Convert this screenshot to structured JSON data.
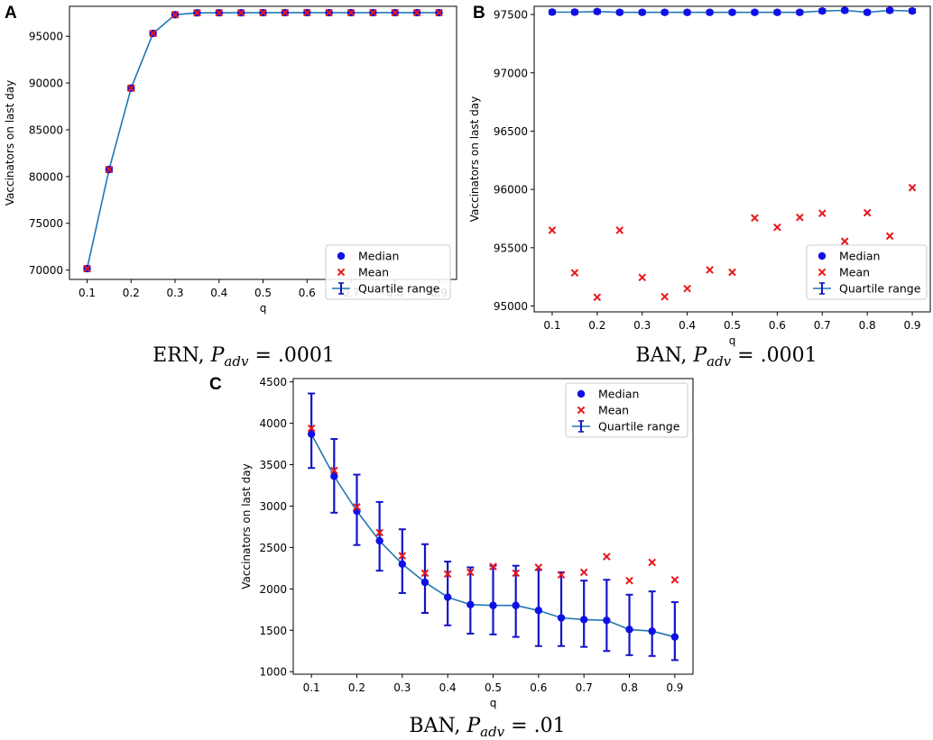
{
  "colors": {
    "median": "#1010e6",
    "mean": "#e8161b",
    "line": "#1f77b4",
    "errorbar": "#1414c8"
  },
  "chart_data": [
    {
      "panel": "A",
      "type": "line",
      "caption": {
        "name": "ERN",
        "p_symbol": "P",
        "p_sub": "adv",
        "value": ".0001"
      },
      "xlabel": "q",
      "ylabel": "Vaccinators on last day",
      "xlim": [
        0.06,
        0.94
      ],
      "ylim": [
        69000,
        98200
      ],
      "xticks": [
        "0.1",
        "0.2",
        "0.3",
        "0.4",
        "0.5",
        "0.6",
        "0.7",
        "0.8",
        "0.9"
      ],
      "yticks": [
        "70000",
        "75000",
        "80000",
        "85000",
        "90000",
        "95000"
      ],
      "legend": {
        "placement": "lower-right",
        "entries": [
          "Median",
          "Mean",
          "Quartile range"
        ]
      },
      "x": [
        0.1,
        0.15,
        0.2,
        0.25,
        0.3,
        0.35,
        0.4,
        0.45,
        0.5,
        0.55,
        0.6,
        0.65,
        0.7,
        0.75,
        0.8,
        0.85,
        0.9
      ],
      "series": [
        {
          "name": "Median",
          "values": [
            70150,
            80750,
            89450,
            95300,
            97300,
            97500,
            97510,
            97510,
            97520,
            97520,
            97520,
            97520,
            97520,
            97520,
            97520,
            97520,
            97520
          ]
        },
        {
          "name": "Mean",
          "values": [
            70150,
            80750,
            89450,
            95300,
            97300,
            97500,
            97510,
            97510,
            97520,
            97520,
            97520,
            97520,
            97520,
            97520,
            97520,
            97520,
            97520
          ]
        },
        {
          "name": "Quartile range",
          "lower": [
            69900,
            80500,
            89250,
            95100,
            97200,
            97450,
            97470,
            97470,
            97480,
            97480,
            97480,
            97480,
            97480,
            97480,
            97480,
            97480,
            97480
          ],
          "upper": [
            70400,
            81000,
            89650,
            95500,
            97400,
            97560,
            97560,
            97560,
            97560,
            97560,
            97560,
            97560,
            97560,
            97560,
            97560,
            97560,
            97560
          ]
        }
      ]
    },
    {
      "panel": "B",
      "type": "line",
      "caption": {
        "name": "BAN",
        "p_symbol": "P",
        "p_sub": "adv",
        "value": ".0001"
      },
      "xlabel": "q",
      "ylabel": "Vaccinators on last day",
      "xlim": [
        0.06,
        0.94
      ],
      "ylim": [
        94950,
        97570
      ],
      "xticks": [
        "0.1",
        "0.2",
        "0.3",
        "0.4",
        "0.5",
        "0.6",
        "0.7",
        "0.8",
        "0.9"
      ],
      "yticks": [
        "95000",
        "95500",
        "96000",
        "96500",
        "97000",
        "97500"
      ],
      "legend": {
        "placement": "lower-right",
        "entries": [
          "Median",
          "Mean",
          "Quartile range"
        ]
      },
      "x": [
        0.1,
        0.15,
        0.2,
        0.25,
        0.3,
        0.35,
        0.4,
        0.45,
        0.5,
        0.55,
        0.6,
        0.65,
        0.7,
        0.75,
        0.8,
        0.85,
        0.9
      ],
      "series": [
        {
          "name": "Median",
          "values": [
            97520,
            97520,
            97525,
            97518,
            97518,
            97518,
            97518,
            97518,
            97518,
            97518,
            97518,
            97518,
            97530,
            97535,
            97518,
            97535,
            97530
          ]
        },
        {
          "name": "Mean",
          "values": [
            95650,
            95285,
            95075,
            95650,
            95245,
            95080,
            95150,
            95310,
            95290,
            95755,
            95675,
            95760,
            95795,
            95555,
            95800,
            95600,
            96015
          ]
        },
        {
          "name": "Quartile range",
          "lower": [
            97505,
            97505,
            97510,
            97505,
            97505,
            97505,
            97505,
            97505,
            97505,
            97505,
            97505,
            97505,
            97515,
            97520,
            97505,
            97520,
            97515
          ],
          "upper": [
            97535,
            97535,
            97540,
            97532,
            97532,
            97532,
            97532,
            97532,
            97532,
            97532,
            97532,
            97532,
            97545,
            97550,
            97532,
            97550,
            97545
          ]
        }
      ]
    },
    {
      "panel": "C",
      "type": "line",
      "caption": {
        "name": "BAN",
        "p_symbol": "P",
        "p_sub": "adv",
        "value": ".01"
      },
      "xlabel": "q",
      "ylabel": "Vaccinators on last day",
      "xlim": [
        0.06,
        0.94
      ],
      "ylim": [
        970,
        4540
      ],
      "xticks": [
        "0.1",
        "0.2",
        "0.3",
        "0.4",
        "0.5",
        "0.6",
        "0.7",
        "0.8",
        "0.9"
      ],
      "yticks": [
        "1000",
        "1500",
        "2000",
        "2500",
        "3000",
        "3500",
        "4000",
        "4500"
      ],
      "legend": {
        "placement": "top-right",
        "entries": [
          "Median",
          "Mean",
          "Quartile range"
        ]
      },
      "x": [
        0.1,
        0.15,
        0.2,
        0.25,
        0.3,
        0.35,
        0.4,
        0.45,
        0.5,
        0.55,
        0.6,
        0.65,
        0.7,
        0.75,
        0.8,
        0.85,
        0.9
      ],
      "series": [
        {
          "name": "Median",
          "values": [
            3870,
            3360,
            2940,
            2580,
            2300,
            2080,
            1900,
            1810,
            1800,
            1800,
            1740,
            1650,
            1630,
            1620,
            1510,
            1490,
            1420
          ]
        },
        {
          "name": "Mean",
          "values": [
            3940,
            3430,
            2990,
            2680,
            2400,
            2190,
            2180,
            2200,
            2270,
            2190,
            2260,
            2170,
            2200,
            2390,
            2100,
            2320,
            2110
          ]
        },
        {
          "name": "Quartile range",
          "lower": [
            3460,
            2920,
            2530,
            2220,
            1950,
            1710,
            1560,
            1460,
            1450,
            1420,
            1310,
            1310,
            1300,
            1250,
            1200,
            1190,
            1140
          ],
          "upper": [
            4360,
            3810,
            3380,
            3050,
            2720,
            2540,
            2330,
            2260,
            2280,
            2280,
            2230,
            2200,
            2100,
            2110,
            1930,
            1970,
            1840
          ]
        }
      ]
    }
  ]
}
